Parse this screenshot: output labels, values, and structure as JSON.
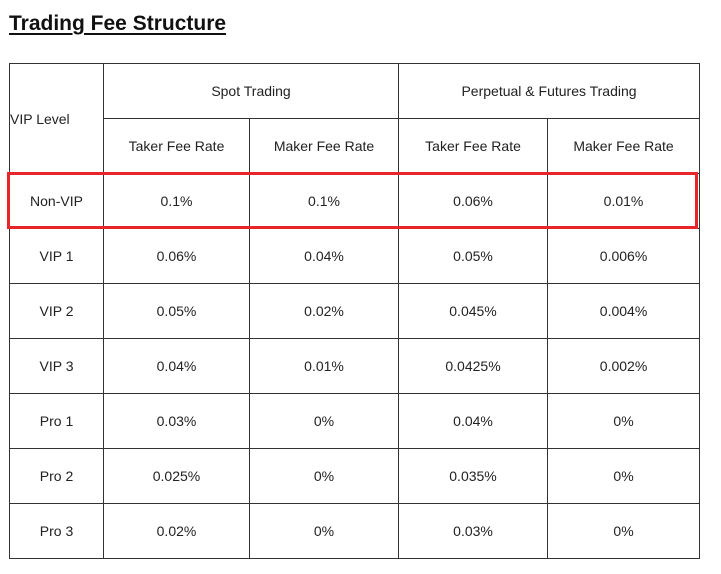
{
  "title": "Trading Fee Structure",
  "highlight_color": "#e8252a",
  "table": {
    "vip_level_header": "VIP Level",
    "groups": [
      "Spot Trading",
      "Perpetual & Futures Trading"
    ],
    "subheaders": [
      "Taker Fee Rate",
      "Maker Fee Rate",
      "Taker Fee Rate",
      "Maker Fee Rate"
    ],
    "highlighted_row": "Non-VIP",
    "rows": [
      {
        "level": "Non-VIP",
        "spot_taker": "0.1%",
        "spot_maker": "0.1%",
        "perp_taker": "0.06%",
        "perp_maker": "0.01%"
      },
      {
        "level": "VIP 1",
        "spot_taker": "0.06%",
        "spot_maker": "0.04%",
        "perp_taker": "0.05%",
        "perp_maker": "0.006%"
      },
      {
        "level": "VIP 2",
        "spot_taker": "0.05%",
        "spot_maker": "0.02%",
        "perp_taker": "0.045%",
        "perp_maker": "0.004%"
      },
      {
        "level": "VIP 3",
        "spot_taker": "0.04%",
        "spot_maker": "0.01%",
        "perp_taker": "0.0425%",
        "perp_maker": "0.002%"
      },
      {
        "level": "Pro 1",
        "spot_taker": "0.03%",
        "spot_maker": "0%",
        "perp_taker": "0.04%",
        "perp_maker": "0%"
      },
      {
        "level": "Pro 2",
        "spot_taker": "0.025%",
        "spot_maker": "0%",
        "perp_taker": "0.035%",
        "perp_maker": "0%"
      },
      {
        "level": "Pro 3",
        "spot_taker": "0.02%",
        "spot_maker": "0%",
        "perp_taker": "0.03%",
        "perp_maker": "0%"
      }
    ]
  }
}
